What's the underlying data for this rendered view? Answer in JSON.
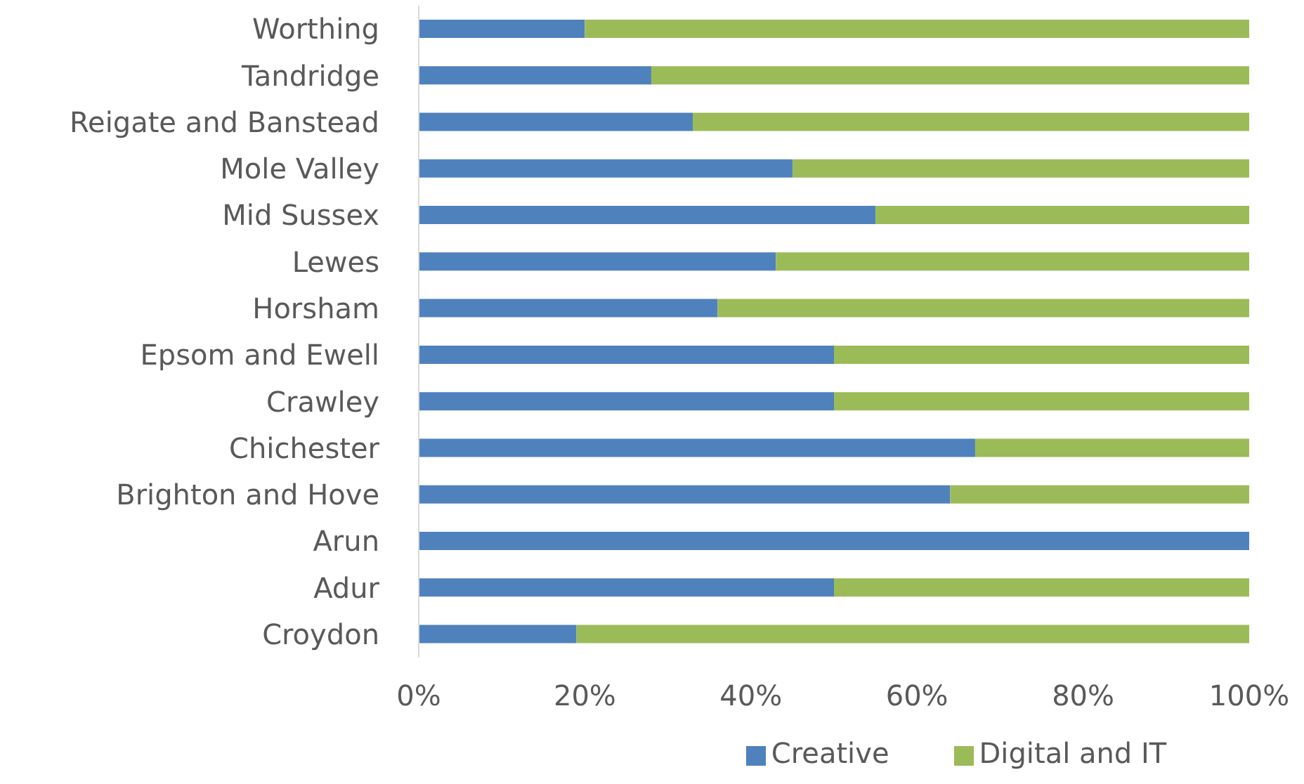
{
  "chart_data": {
    "type": "bar",
    "orientation": "horizontal",
    "stacked": true,
    "categories": [
      "Worthing",
      "Tandridge",
      "Reigate and Banstead",
      "Mole Valley",
      "Mid Sussex",
      "Lewes",
      "Horsham",
      "Epsom and Ewell",
      "Crawley",
      "Chichester",
      "Brighton and Hove",
      "Arun",
      "Adur",
      "Croydon"
    ],
    "series": [
      {
        "name": "Creative",
        "color": "#4f81bd",
        "values": [
          20,
          28,
          33,
          45,
          55,
          43,
          36,
          50,
          50,
          67,
          64,
          100,
          50,
          19
        ]
      },
      {
        "name": "Digital and IT",
        "color": "#9bbb59",
        "values": [
          80,
          72,
          67,
          55,
          45,
          57,
          64,
          50,
          50,
          33,
          36,
          0,
          50,
          81
        ]
      }
    ],
    "xlim": [
      0,
      100
    ],
    "xticks": [
      {
        "value": 0,
        "label": "0%"
      },
      {
        "value": 20,
        "label": "20%"
      },
      {
        "value": 40,
        "label": "40%"
      },
      {
        "value": 60,
        "label": "60%"
      },
      {
        "value": 80,
        "label": "80%"
      },
      {
        "value": 100,
        "label": "100%"
      }
    ],
    "grid": false,
    "legend": "bottom"
  }
}
